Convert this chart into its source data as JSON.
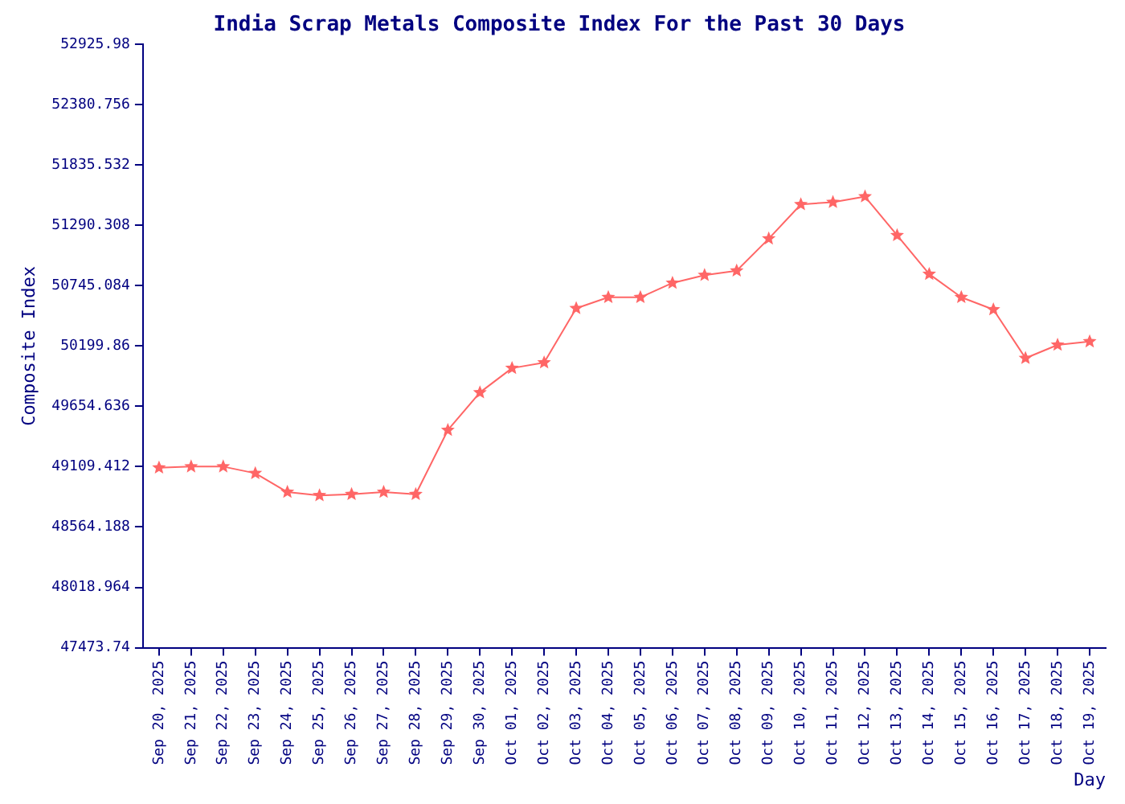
{
  "chart_data": {
    "type": "line",
    "title": "India Scrap Metals Composite Index For the Past 30 Days",
    "xlabel": "Day",
    "ylabel": "Composite Index",
    "categories": [
      "Sep 20, 2025",
      "Sep 21, 2025",
      "Sep 22, 2025",
      "Sep 23, 2025",
      "Sep 24, 2025",
      "Sep 25, 2025",
      "Sep 26, 2025",
      "Sep 27, 2025",
      "Sep 28, 2025",
      "Sep 29, 2025",
      "Sep 30, 2025",
      "Oct 01, 2025",
      "Oct 02, 2025",
      "Oct 03, 2025",
      "Oct 04, 2025",
      "Oct 05, 2025",
      "Oct 06, 2025",
      "Oct 07, 2025",
      "Oct 08, 2025",
      "Oct 09, 2025",
      "Oct 10, 2025",
      "Oct 11, 2025",
      "Oct 12, 2025",
      "Oct 13, 2025",
      "Oct 14, 2025",
      "Oct 15, 2025",
      "Oct 16, 2025",
      "Oct 17, 2025",
      "Oct 18, 2025",
      "Oct 19, 2025"
    ],
    "series": [
      {
        "color": "#ff6666",
        "values": [
          49100,
          49110,
          49110,
          49050,
          48880,
          48850,
          48860,
          48880,
          48860,
          49440,
          49780,
          50000,
          50050,
          50540,
          50640,
          50640,
          50770,
          50840,
          50880,
          51170,
          51480,
          51500,
          51550,
          51200,
          50850,
          50640,
          50530,
          50090,
          50210,
          50240
        ]
      }
    ],
    "ylim": [
      47473.74,
      52925.98
    ],
    "yticks": [
      47473.74,
      48018.964,
      48564.188,
      49109.412,
      49654.636,
      50199.86,
      50745.084,
      51290.308,
      51835.532,
      52380.756,
      52925.98
    ],
    "grid": false,
    "legend": false,
    "marker": "star",
    "line_style": "solid"
  }
}
